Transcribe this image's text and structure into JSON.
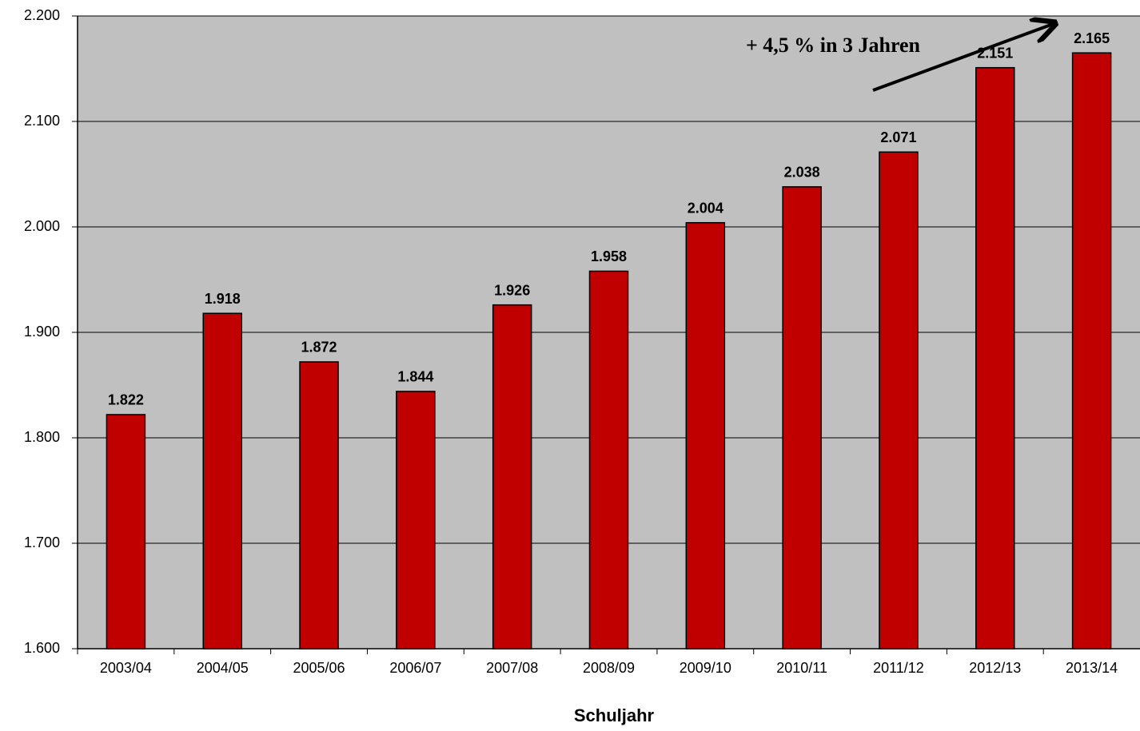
{
  "chart_data": {
    "type": "bar",
    "x_label": "Schuljahr",
    "annotation": "+ 4,5 % in 3 Jahren",
    "categories": [
      "2003/04",
      "2004/05",
      "2005/06",
      "2006/07",
      "2007/08",
      "2008/09",
      "2009/10",
      "2010/11",
      "2011/12",
      "2012/13",
      "2013/14"
    ],
    "values": [
      1822,
      1918,
      1872,
      1844,
      1926,
      1958,
      2004,
      2038,
      2071,
      2151,
      2165
    ],
    "value_labels": [
      "1.822",
      "1.918",
      "1.872",
      "1.844",
      "1.926",
      "1.958",
      "2.004",
      "2.038",
      "2.071",
      "2.151",
      "2.165"
    ],
    "color": "#c00000",
    "ylim": [
      1600,
      2200
    ],
    "yticks": [
      {
        "value": 1600,
        "label": "1.600"
      },
      {
        "value": 1700,
        "label": "1.700"
      },
      {
        "value": 1800,
        "label": "1.800"
      },
      {
        "value": 1900,
        "label": "1.900"
      },
      {
        "value": 2000,
        "label": "2.000"
      },
      {
        "value": 2100,
        "label": "2.100"
      },
      {
        "value": 2200,
        "label": "2.200"
      }
    ],
    "grid": true
  }
}
